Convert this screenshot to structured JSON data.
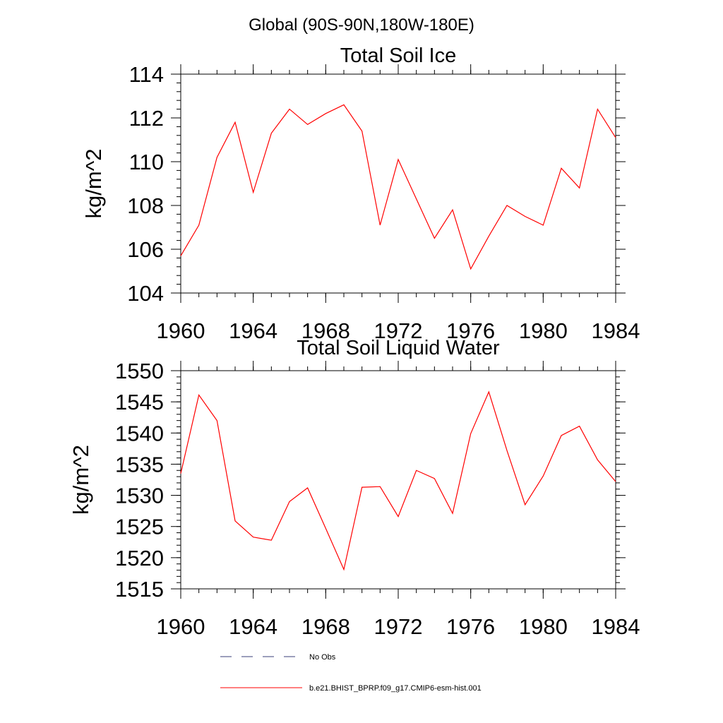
{
  "page_title": "Global (90S-90N,180W-180E)",
  "chart_data": [
    {
      "type": "line",
      "title": "Total Soil Ice",
      "xlabel": "",
      "ylabel": "kg/m^2",
      "xlim": [
        1960,
        1984
      ],
      "ylim": [
        104,
        114
      ],
      "x_ticks": [
        "1960",
        "1964",
        "1968",
        "1972",
        "1976",
        "1980",
        "1984"
      ],
      "y_ticks": [
        "104",
        "106",
        "108",
        "110",
        "112",
        "114"
      ],
      "x": [
        1960,
        1961,
        1962,
        1963,
        1964,
        1965,
        1966,
        1967,
        1968,
        1969,
        1970,
        1971,
        1972,
        1973,
        1974,
        1975,
        1976,
        1977,
        1978,
        1979,
        1980,
        1981,
        1982,
        1983,
        1984
      ],
      "series": [
        {
          "name": "b.e21.BHIST_BPRP.f09_g17.CMIP6-esm-hist.001",
          "color": "#ff0000",
          "values": [
            105.7,
            107.1,
            110.2,
            111.8,
            108.6,
            111.3,
            112.4,
            111.7,
            112.2,
            112.6,
            111.4,
            107.1,
            110.1,
            108.3,
            106.5,
            107.8,
            105.1,
            106.6,
            108.0,
            107.5,
            107.1,
            109.7,
            108.8,
            112.4,
            111.1
          ]
        }
      ]
    },
    {
      "type": "line",
      "title": "Total Soil Liquid Water",
      "xlabel": "",
      "ylabel": "kg/m^2",
      "xlim": [
        1960,
        1984
      ],
      "ylim": [
        1515,
        1550
      ],
      "x_ticks": [
        "1960",
        "1964",
        "1968",
        "1972",
        "1976",
        "1980",
        "1984"
      ],
      "y_ticks": [
        "1515",
        "1520",
        "1525",
        "1530",
        "1535",
        "1540",
        "1545",
        "1550"
      ],
      "x": [
        1960,
        1961,
        1962,
        1963,
        1964,
        1965,
        1966,
        1967,
        1968,
        1969,
        1970,
        1971,
        1972,
        1973,
        1974,
        1975,
        1976,
        1977,
        1978,
        1979,
        1980,
        1981,
        1982,
        1983,
        1984
      ],
      "series": [
        {
          "name": "b.e21.BHIST_BPRP.f09_g17.CMIP6-esm-hist.001",
          "color": "#ff0000",
          "values": [
            1533.5,
            1546.1,
            1542.0,
            1525.9,
            1523.3,
            1522.8,
            1529.0,
            1531.2,
            1524.7,
            1518.1,
            1531.3,
            1531.4,
            1526.6,
            1534.0,
            1532.7,
            1527.1,
            1539.9,
            1546.6,
            1537.2,
            1528.5,
            1533.1,
            1539.6,
            1541.1,
            1535.7,
            1532.2
          ]
        }
      ]
    }
  ],
  "legend": [
    {
      "label": "No Obs",
      "style": "dashed",
      "color": "#3a3f7a"
    },
    {
      "label": "b.e21.BHIST_BPRP.f09_g17.CMIP6-esm-hist.001",
      "style": "solid",
      "color": "#ff0000"
    }
  ]
}
